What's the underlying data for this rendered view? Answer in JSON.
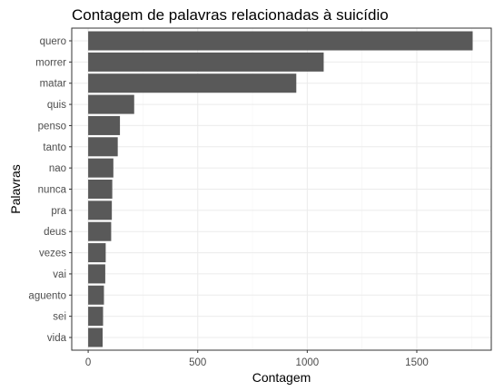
{
  "chart_data": {
    "type": "bar",
    "orientation": "horizontal",
    "title": "Contagem de palavras relacionadas à suicídio",
    "xlabel": "Contagem",
    "ylabel": "Palavras",
    "categories": [
      "quero",
      "morrer",
      "matar",
      "quis",
      "penso",
      "tanto",
      "nao",
      "nunca",
      "pra",
      "deus",
      "vezes",
      "vai",
      "aguento",
      "sei",
      "vida"
    ],
    "values": [
      1755,
      1075,
      950,
      210,
      145,
      135,
      115,
      110,
      108,
      105,
      80,
      78,
      72,
      68,
      66
    ],
    "xticks": [
      0,
      500,
      1000,
      1500
    ],
    "xlim": [
      -75,
      1840
    ],
    "bar_color": "#595959",
    "panel_border": "#333333",
    "grid": true,
    "legend": "none"
  }
}
